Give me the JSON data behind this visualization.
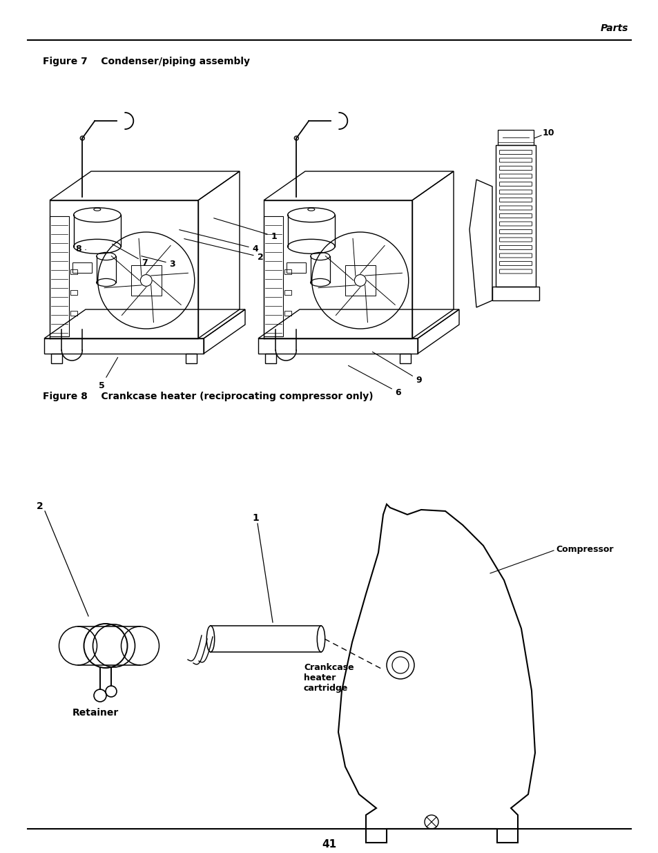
{
  "page_number": "41",
  "header_text": "Parts",
  "figure7_title": "Figure 7    Condenser/piping assembly",
  "figure8_title": "Figure 8    Crankcase heater (reciprocating compressor only)",
  "bg_color": "#ffffff",
  "line_color": "#000000",
  "text_color": "#000000"
}
